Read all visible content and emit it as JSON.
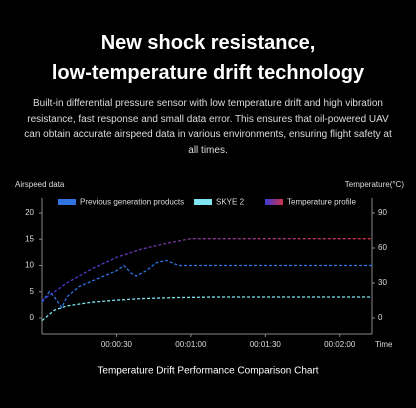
{
  "header": {
    "title_lines": [
      "New shock resistance,",
      "low-temperature drift technology"
    ],
    "description": "Built-in differential pressure sensor with low temperature drift and high vibration resistance, fast response and small data error. This ensures that oil-powered UAV can obtain accurate airspeed data in various environments, ensuring flight safety at all times."
  },
  "chart_data": {
    "type": "line",
    "title": "Temperature Drift Performance Comparison Chart",
    "ylabel": "Airspeed data",
    "y2label": "Temperature(°C)",
    "xlabel": "Time",
    "xlim": [
      0,
      133
    ],
    "xticks": [
      {
        "value": 30,
        "label": "00:00:30"
      },
      {
        "value": 60,
        "label": "00:01:00"
      },
      {
        "value": 90,
        "label": "00:01:30"
      },
      {
        "value": 120,
        "label": "00:02:00"
      }
    ],
    "ylim": [
      -3,
      22
    ],
    "yticks": [
      0,
      5,
      10,
      15,
      20
    ],
    "y2lim": [
      -13.5,
      99
    ],
    "y2ticks": [
      0,
      30,
      60,
      90
    ],
    "line_style": "dashed",
    "series": [
      {
        "name": "Previous generation products",
        "color": "#2f74e0",
        "x": [
          0,
          3,
          5,
          8,
          10,
          15,
          20,
          25,
          30,
          33,
          36,
          38,
          42,
          46,
          50,
          55,
          60,
          80,
          100,
          120,
          133
        ],
        "values": [
          3,
          5,
          4,
          2,
          4,
          6,
          7,
          8,
          9,
          10,
          8.5,
          8,
          9,
          10.5,
          11,
          10,
          10,
          10,
          10,
          10,
          10
        ]
      },
      {
        "name": "SKYE 2",
        "color": "#7fe6f2",
        "x": [
          0,
          5,
          10,
          20,
          30,
          40,
          55,
          70,
          100,
          133
        ],
        "values": [
          -0.5,
          1.5,
          2.3,
          3,
          3.4,
          3.7,
          3.9,
          4,
          4,
          4
        ]
      },
      {
        "name": "Temperature profile",
        "color": "#d0304a",
        "gradient_start": "#3a3ad8",
        "axis": "y2",
        "x": [
          0,
          10,
          20,
          30,
          40,
          50,
          55,
          60,
          80,
          100,
          133
        ],
        "values": [
          15,
          30,
          42,
          52,
          59,
          64,
          66,
          68,
          68,
          68,
          68
        ]
      }
    ]
  }
}
